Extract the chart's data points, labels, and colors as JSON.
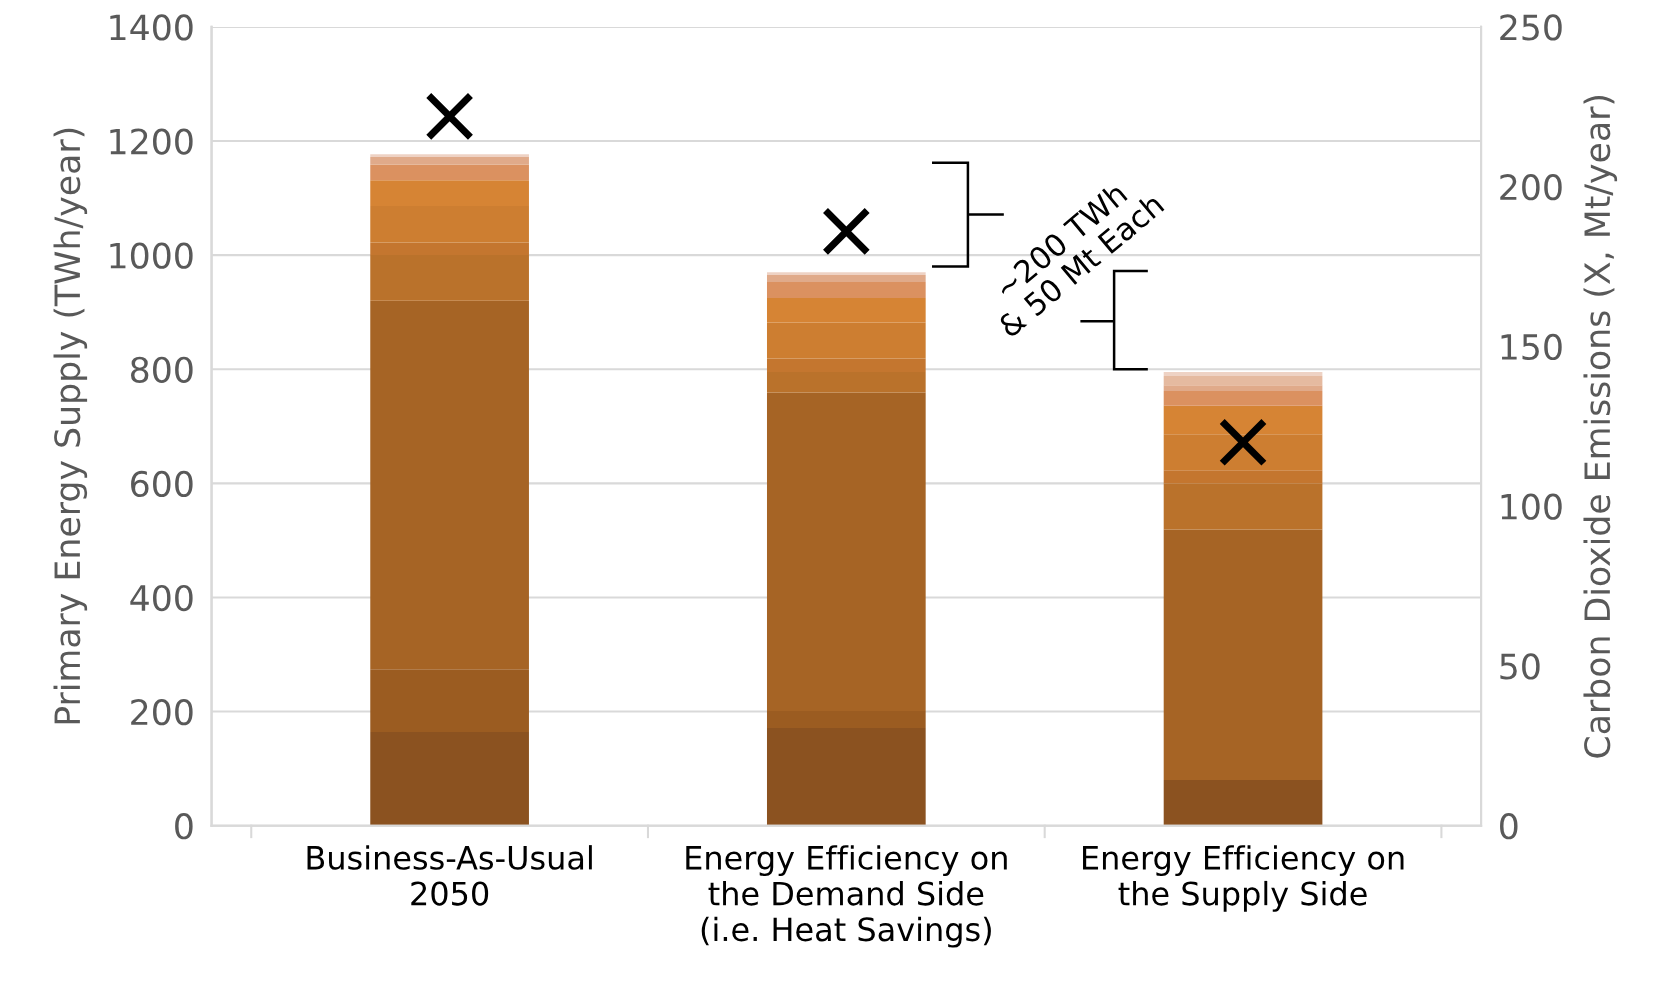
{
  "chart_data": {
    "type": "bar",
    "stacked": true,
    "categories": [
      "Business-As-Usual\n2050",
      "Energy Efficiency on\nthe Demand Side\n(i.e. Heat Savings)",
      "Energy Efficiency on\nthe Supply Side"
    ],
    "ylabel": "Primary Energy Supply (TWh/year)",
    "y2label": "Carbon Dioxide Emissions (X, Mt/year)",
    "ylim": [
      0,
      1400
    ],
    "yticks": [
      0,
      200,
      400,
      600,
      800,
      1000,
      1200,
      1400
    ],
    "y2lim": [
      0,
      250
    ],
    "y2ticks": [
      0,
      50,
      100,
      150,
      200,
      250
    ],
    "grid": "y",
    "legend": false,
    "annotations": [
      "~200 TWh\n& 50 Mt Each"
    ],
    "series": [
      {
        "color": "#8b5220",
        "values": [
          164,
          171,
          80
        ]
      },
      {
        "color": "#9b5c21",
        "values": [
          110,
          30,
          0
        ]
      },
      {
        "color": "#a66425",
        "values": [
          646,
          558,
          439
        ]
      },
      {
        "color": "#ba722b",
        "values": [
          80,
          36,
          81
        ]
      },
      {
        "color": "#c4762f",
        "values": [
          22,
          24,
          23
        ]
      },
      {
        "color": "#cd7e31",
        "values": [
          64,
          63,
          63
        ]
      },
      {
        "color": "#d68434",
        "values": [
          45,
          43,
          50
        ]
      },
      {
        "color": "#db9160",
        "values": [
          28,
          28,
          26
        ]
      },
      {
        "color": "#e0aa8a",
        "values": [
          13,
          12,
          10
        ]
      },
      {
        "color": "#e5baa0",
        "values": [
          0,
          0,
          16
        ]
      },
      {
        "color": "#eed2c4",
        "values": [
          5,
          5,
          7
        ]
      },
      {
        "type": "scatter",
        "axis": "y2",
        "marker": "cross",
        "color": "#000000",
        "values": [
          222,
          186,
          120
        ]
      }
    ]
  }
}
